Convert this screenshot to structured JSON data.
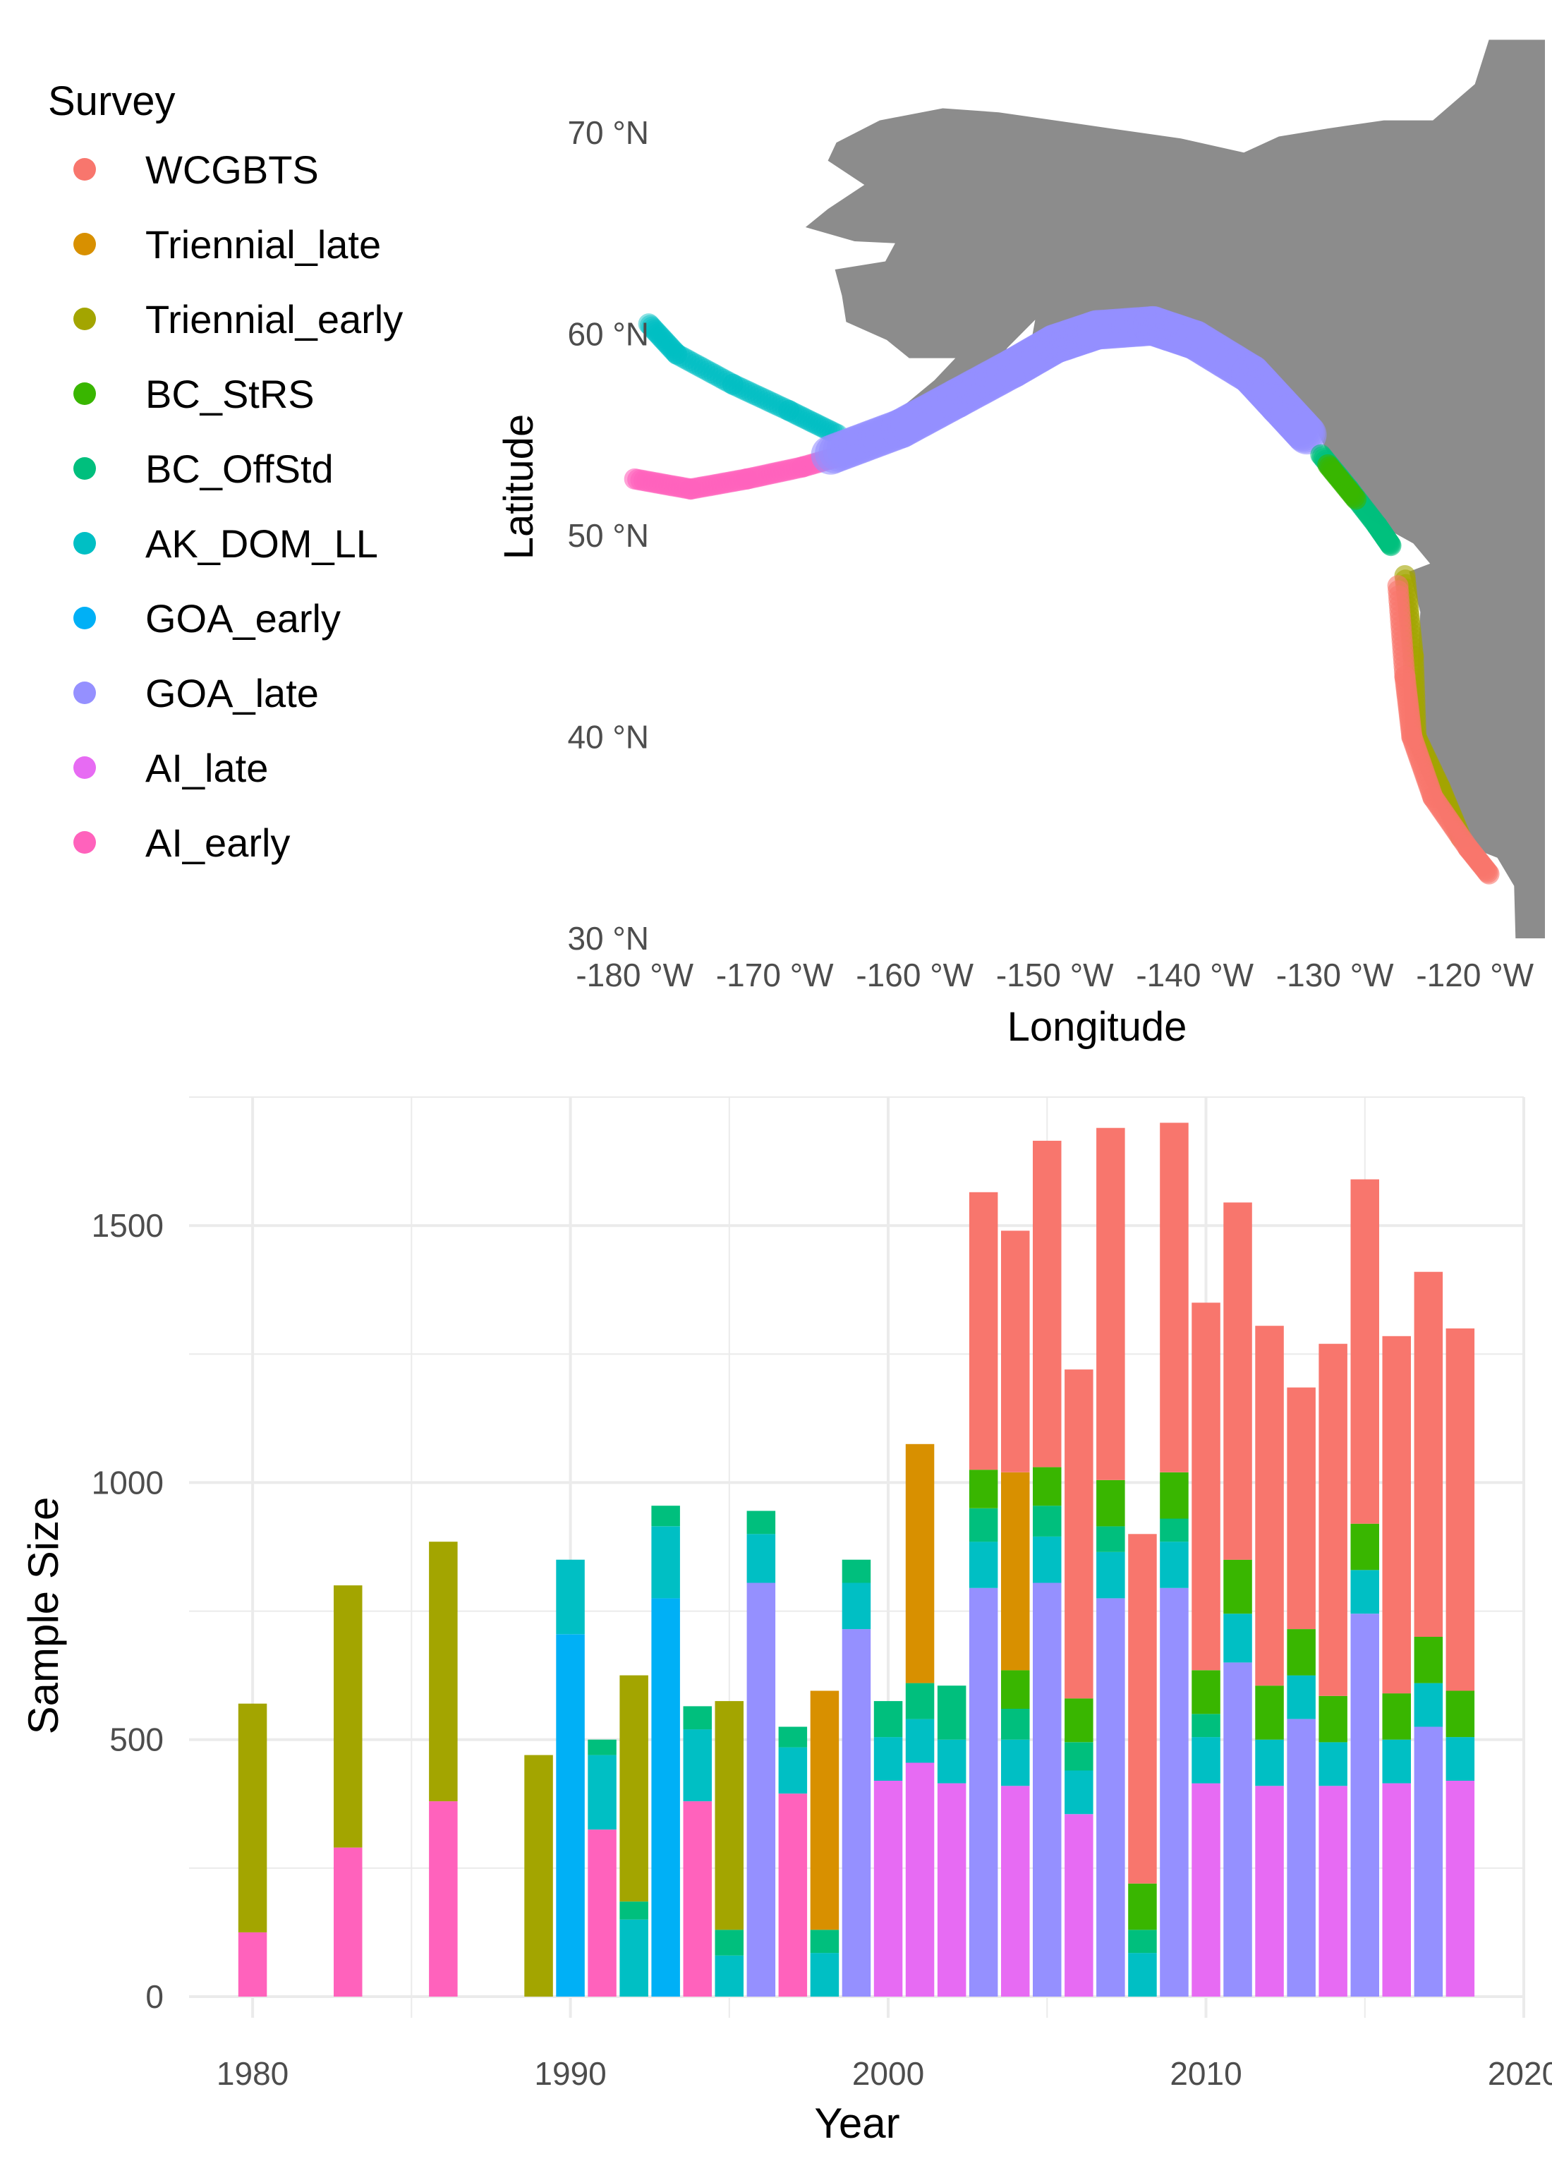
{
  "legend": {
    "title": "Survey",
    "items": [
      {
        "label": "WCGBTS",
        "color": "#F8766D"
      },
      {
        "label": "Triennial_late",
        "color": "#D89000"
      },
      {
        "label": "Triennial_early",
        "color": "#A3A500"
      },
      {
        "label": "BC_StRS",
        "color": "#39B600"
      },
      {
        "label": "BC_OffStd",
        "color": "#00BF7D"
      },
      {
        "label": "AK_DOM_LL",
        "color": "#00BFC4"
      },
      {
        "label": "GOA_early",
        "color": "#00B0F6"
      },
      {
        "label": "GOA_late",
        "color": "#9590FF"
      },
      {
        "label": "AI_late",
        "color": "#E76BF3"
      },
      {
        "label": "AI_early",
        "color": "#FF62BC"
      }
    ]
  },
  "chart_data": [
    {
      "type": "scatter",
      "xlabel": "Longitude",
      "ylabel": "Latitude",
      "x_ticks": [
        "-180 °W",
        "-170 °W",
        "-160 °W",
        "-150 °W",
        "-140 °W",
        "-130 °W",
        "-120 °W"
      ],
      "y_ticks": [
        "70 °N",
        "60 °N",
        "50 °N",
        "40 °N",
        "30 °N"
      ],
      "xlim": [
        -182,
        -115
      ],
      "ylim": [
        30,
        75
      ],
      "land_color": "#8c8c8c",
      "track_segments": [
        {
          "survey": "AK_DOM_LL",
          "points": [
            [
              -179,
              60.5
            ],
            [
              -177,
              59
            ],
            [
              -173,
              57.5
            ],
            [
              -169,
              56.2
            ],
            [
              -165.5,
              55
            ]
          ]
        },
        {
          "survey": "AI_early",
          "points": [
            [
              -180,
              52.8
            ],
            [
              -176,
              52.3
            ],
            [
              -172,
              52.8
            ],
            [
              -168,
              53.4
            ],
            [
              -164,
              54.2
            ]
          ]
        },
        {
          "survey": "GOA_late",
          "points": [
            [
              -166,
              54
            ],
            [
              -161,
              55.3
            ],
            [
              -157,
              56.8
            ],
            [
              -153,
              58.3
            ],
            [
              -150,
              59.5
            ],
            [
              -147,
              60.2
            ],
            [
              -143,
              60.4
            ],
            [
              -140,
              59.7
            ],
            [
              -136,
              58
            ],
            [
              -134,
              56.5
            ],
            [
              -132,
              55
            ]
          ]
        },
        {
          "survey": "BC_OffStd",
          "points": [
            [
              -131,
              54
            ],
            [
              -129,
              52.3
            ],
            [
              -127,
              50.5
            ],
            [
              -126,
              49.5
            ]
          ]
        },
        {
          "survey": "BC_StRS",
          "points": [
            [
              -130.5,
              53.5
            ],
            [
              -128.5,
              51.8
            ]
          ]
        },
        {
          "survey": "Triennial_early",
          "points": [
            [
              -125,
              48
            ],
            [
              -124.4,
              44
            ],
            [
              -124.2,
              40
            ],
            [
              -122.5,
              37.5
            ],
            [
              -121,
              35
            ]
          ]
        },
        {
          "survey": "WCGBTS",
          "points": [
            [
              -125.5,
              47.5
            ],
            [
              -125,
              43
            ],
            [
              -124.5,
              40
            ],
            [
              -123,
              37
            ],
            [
              -120.5,
              34.5
            ],
            [
              -119,
              33.2
            ]
          ]
        }
      ]
    },
    {
      "type": "bar",
      "stacked": true,
      "xlabel": "Year",
      "ylabel": "Sample Size",
      "x_ticks": [
        1980,
        1990,
        2000,
        2010,
        2020
      ],
      "y_ticks": [
        0,
        500,
        1000,
        1500
      ],
      "xlim": [
        1978,
        2020
      ],
      "ylim": [
        0,
        1750
      ],
      "stack_order": [
        "AI_early",
        "AI_late",
        "GOA_late",
        "GOA_early",
        "AK_DOM_LL",
        "BC_OffStd",
        "BC_StRS",
        "Triennial_early",
        "Triennial_late",
        "WCGBTS"
      ],
      "years": [
        {
          "year": 1980,
          "AI_early": 125,
          "Triennial_early": 445
        },
        {
          "year": 1983,
          "AI_early": 290,
          "Triennial_early": 510
        },
        {
          "year": 1986,
          "AI_early": 380,
          "Triennial_early": 505
        },
        {
          "year": 1989,
          "Triennial_early": 470
        },
        {
          "year": 1990,
          "GOA_early": 705,
          "AK_DOM_LL": 145
        },
        {
          "year": 1991,
          "AI_early": 325,
          "AK_DOM_LL": 145,
          "BC_OffStd": 30
        },
        {
          "year": 1992,
          "AK_DOM_LL": 150,
          "BC_OffStd": 35,
          "Triennial_early": 440
        },
        {
          "year": 1993,
          "GOA_early": 775,
          "AK_DOM_LL": 140,
          "BC_OffStd": 40
        },
        {
          "year": 1994,
          "AI_early": 380,
          "AK_DOM_LL": 140,
          "BC_OffStd": 45
        },
        {
          "year": 1995,
          "AK_DOM_LL": 80,
          "BC_OffStd": 50,
          "Triennial_early": 445
        },
        {
          "year": 1996,
          "GOA_late": 805,
          "AK_DOM_LL": 95,
          "BC_OffStd": 45
        },
        {
          "year": 1997,
          "AI_early": 395,
          "AK_DOM_LL": 90,
          "BC_OffStd": 40
        },
        {
          "year": 1998,
          "AK_DOM_LL": 85,
          "BC_OffStd": 45,
          "Triennial_late": 465
        },
        {
          "year": 1999,
          "GOA_late": 715,
          "AK_DOM_LL": 90,
          "BC_OffStd": 45
        },
        {
          "year": 2000,
          "AI_late": 420,
          "AK_DOM_LL": 85,
          "BC_OffStd": 70
        },
        {
          "year": 2001,
          "AI_late": 455,
          "AK_DOM_LL": 85,
          "BC_OffStd": 70,
          "Triennial_late": 465
        },
        {
          "year": 2002,
          "AI_late": 415,
          "AK_DOM_LL": 85,
          "BC_OffStd": 105
        },
        {
          "year": 2003,
          "GOA_late": 795,
          "AK_DOM_LL": 90,
          "BC_OffStd": 65,
          "BC_StRS": 75,
          "WCGBTS": 540
        },
        {
          "year": 2004,
          "AI_late": 410,
          "AK_DOM_LL": 90,
          "BC_OffStd": 60,
          "BC_StRS": 75,
          "Triennial_late": 385,
          "WCGBTS": 470
        },
        {
          "year": 2005,
          "GOA_late": 805,
          "AK_DOM_LL": 90,
          "BC_OffStd": 60,
          "BC_StRS": 75,
          "WCGBTS": 635
        },
        {
          "year": 2006,
          "AI_late": 355,
          "AK_DOM_LL": 85,
          "BC_OffStd": 55,
          "BC_StRS": 85,
          "WCGBTS": 640
        },
        {
          "year": 2007,
          "GOA_late": 775,
          "AK_DOM_LL": 90,
          "BC_OffStd": 50,
          "BC_StRS": 90,
          "WCGBTS": 685
        },
        {
          "year": 2008,
          "AK_DOM_LL": 85,
          "BC_OffStd": 45,
          "BC_StRS": 90,
          "WCGBTS": 680
        },
        {
          "year": 2009,
          "GOA_late": 795,
          "AK_DOM_LL": 90,
          "BC_OffStd": 45,
          "BC_StRS": 90,
          "WCGBTS": 680
        },
        {
          "year": 2010,
          "AI_late": 415,
          "AK_DOM_LL": 90,
          "BC_OffStd": 45,
          "BC_StRS": 85,
          "WCGBTS": 715
        },
        {
          "year": 2011,
          "GOA_late": 650,
          "AK_DOM_LL": 95,
          "BC_StRS": 105,
          "WCGBTS": 695
        },
        {
          "year": 2012,
          "AI_late": 410,
          "AK_DOM_LL": 90,
          "BC_StRS": 105,
          "WCGBTS": 700
        },
        {
          "year": 2013,
          "GOA_late": 540,
          "AK_DOM_LL": 85,
          "BC_StRS": 90,
          "WCGBTS": 470
        },
        {
          "year": 2014,
          "AI_late": 410,
          "AK_DOM_LL": 85,
          "BC_StRS": 90,
          "WCGBTS": 685
        },
        {
          "year": 2015,
          "GOA_late": 745,
          "AK_DOM_LL": 85,
          "BC_StRS": 90,
          "WCGBTS": 670
        },
        {
          "year": 2016,
          "AI_late": 415,
          "AK_DOM_LL": 85,
          "BC_StRS": 90,
          "WCGBTS": 695
        },
        {
          "year": 2017,
          "GOA_late": 525,
          "AK_DOM_LL": 85,
          "BC_StRS": 90,
          "WCGBTS": 710
        },
        {
          "year": 2018,
          "AI_late": 420,
          "AK_DOM_LL": 85,
          "BC_StRS": 90,
          "WCGBTS": 705
        }
      ]
    }
  ]
}
